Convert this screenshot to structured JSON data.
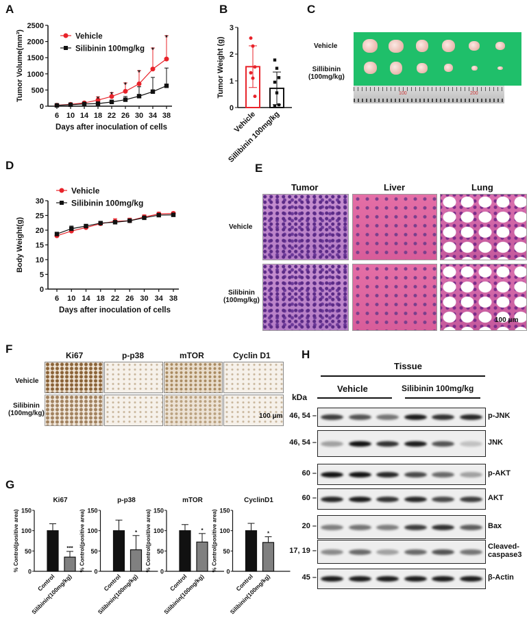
{
  "panels": {
    "A": "A",
    "B": "B",
    "C": "C",
    "D": "D",
    "E": "E",
    "F": "F",
    "G": "G",
    "H": "H"
  },
  "chart_data": [
    {
      "id": "A",
      "type": "line",
      "xlabel": "Days after inoculation of cells",
      "ylabel": "Tumor Volume(mm³)",
      "x": [
        6,
        10,
        14,
        18,
        22,
        26,
        30,
        34,
        38
      ],
      "ylim": [
        0,
        2500
      ],
      "yticks": [
        0,
        500,
        1000,
        1500,
        2000,
        2500
      ],
      "legend": "top-left",
      "series": [
        {
          "name": "Vehicle",
          "color": "#e8232a",
          "marker": "circle",
          "values": [
            30,
            55,
            100,
            190,
            300,
            460,
            690,
            1150,
            1460
          ],
          "error": [
            10,
            15,
            30,
            100,
            120,
            260,
            410,
            650,
            720
          ]
        },
        {
          "name": "Silibinin 100mg/kg",
          "color": "#111111",
          "marker": "square",
          "values": [
            25,
            45,
            70,
            80,
            130,
            200,
            310,
            450,
            630
          ],
          "error": [
            8,
            12,
            20,
            40,
            60,
            100,
            290,
            440,
            550
          ]
        }
      ],
      "annotations": [
        {
          "x": 18,
          "text": "*"
        },
        {
          "x": 22,
          "text": "*"
        },
        {
          "x": 26,
          "text": "*"
        },
        {
          "x": 30,
          "text": "*"
        },
        {
          "x": 34,
          "text": "*"
        },
        {
          "x": 38,
          "text": "*"
        }
      ]
    },
    {
      "id": "B",
      "type": "bar",
      "ylabel": "Tumor Weight (g)",
      "ylim": [
        0,
        3
      ],
      "yticks": [
        0,
        1,
        2,
        3
      ],
      "categories": [
        "Vehicle",
        "Sillibinin 100mg/kg"
      ],
      "values": [
        1.53,
        0.72
      ],
      "error": [
        0.78,
        0.61
      ],
      "colors": [
        "#e8232a",
        "#111111"
      ],
      "points": [
        [
          2.6,
          2.3,
          1.52,
          1.3,
          1.1,
          0.42
        ],
        [
          1.78,
          1.47,
          1.12,
          0.95,
          0.55,
          0.1,
          0.05
        ]
      ]
    },
    {
      "id": "D",
      "type": "line",
      "xlabel": "Days after inoculation of cells",
      "ylabel": "Body Weight(g)",
      "x": [
        6,
        10,
        14,
        18,
        22,
        26,
        30,
        34,
        38
      ],
      "ylim": [
        0,
        30
      ],
      "yticks": [
        0,
        5,
        10,
        15,
        20,
        25,
        30
      ],
      "legend": "top-left",
      "series": [
        {
          "name": "Vehicle",
          "color": "#e8232a",
          "marker": "circle",
          "values": [
            18.1,
            19.7,
            20.9,
            22.2,
            23.0,
            23.2,
            24.5,
            25.5,
            25.7
          ],
          "error": [
            0.4,
            0.5,
            0.4,
            0.4,
            0.9,
            0.9,
            0.7,
            0.6,
            0.5
          ]
        },
        {
          "name": "Silibinin 100mg/kg",
          "color": "#111111",
          "marker": "square",
          "values": [
            18.7,
            20.5,
            21.4,
            22.4,
            22.7,
            23.2,
            24.2,
            25.1,
            25.2
          ],
          "error": [
            0.4,
            0.9,
            0.5,
            0.4,
            0.4,
            0.6,
            0.5,
            0.5,
            0.4
          ]
        }
      ]
    },
    {
      "id": "G",
      "type": "bar",
      "ylabel": "% Control(positive area)",
      "ylim": [
        0,
        150
      ],
      "yticks": [
        0,
        50,
        100,
        150
      ],
      "categories": [
        "Control",
        "Silibinin(100mg/kg)"
      ],
      "colors": [
        "#111111",
        "#808080"
      ],
      "panels": [
        {
          "title": "Ki67",
          "values": [
            100,
            35
          ],
          "error": [
            17,
            14
          ],
          "sig": "***"
        },
        {
          "title": "p-p38",
          "values": [
            100,
            53
          ],
          "error": [
            26,
            35
          ],
          "sig": "*"
        },
        {
          "title": "mTOR",
          "values": [
            100,
            72
          ],
          "error": [
            15,
            21
          ],
          "sig": "*"
        },
        {
          "title": "CyclinD1",
          "values": [
            100,
            71
          ],
          "error": [
            18,
            14
          ],
          "sig": "*"
        }
      ]
    }
  ],
  "C": {
    "rows": [
      "Vehicle",
      "Sillibinin\n(100mg/kg)"
    ],
    "ruler_marks": [
      "100",
      "200"
    ]
  },
  "E": {
    "columns": [
      "Tumor",
      "Liver",
      "Lung"
    ],
    "rows": [
      "Vehicle",
      "Silibinin\n(100mg/kg)"
    ],
    "scale": "100 μm"
  },
  "F": {
    "columns": [
      "Ki67",
      "p-p38",
      "mTOR",
      "Cyclin D1"
    ],
    "rows": [
      "Vehicle",
      "Silibinin\n(100mg/kg)"
    ],
    "scale": "100 μm"
  },
  "H": {
    "title": "Tissue",
    "groups": [
      "Vehicle",
      "Silibinin 100mg/kg"
    ],
    "kda_label": "kDa",
    "blots": [
      {
        "protein": "p-JNK",
        "kda": "46, 54",
        "intensity": [
          0.8,
          0.7,
          0.55,
          0.95,
          0.85,
          0.9
        ]
      },
      {
        "protein": "JNK",
        "kda": "46, 54",
        "intensity": [
          0.35,
          1.0,
          0.85,
          0.95,
          0.7,
          0.2
        ]
      },
      {
        "protein": "p-AKT",
        "kda": "60",
        "intensity": [
          1.0,
          1.0,
          0.9,
          0.75,
          0.6,
          0.35
        ]
      },
      {
        "protein": "AKT",
        "kda": "60",
        "intensity": [
          0.9,
          0.95,
          0.85,
          0.9,
          0.75,
          0.8
        ]
      },
      {
        "protein": "Bax",
        "kda": "20",
        "intensity": [
          0.5,
          0.55,
          0.5,
          0.8,
          0.85,
          0.65
        ]
      },
      {
        "protein": "Cleaved-\ncaspase3",
        "kda": "17, 19",
        "intensity": [
          0.45,
          0.6,
          0.35,
          0.6,
          0.7,
          0.55
        ]
      },
      {
        "protein": "β-Actin",
        "kda": "45",
        "intensity": [
          0.95,
          0.95,
          0.95,
          0.95,
          0.95,
          0.95
        ]
      }
    ]
  }
}
